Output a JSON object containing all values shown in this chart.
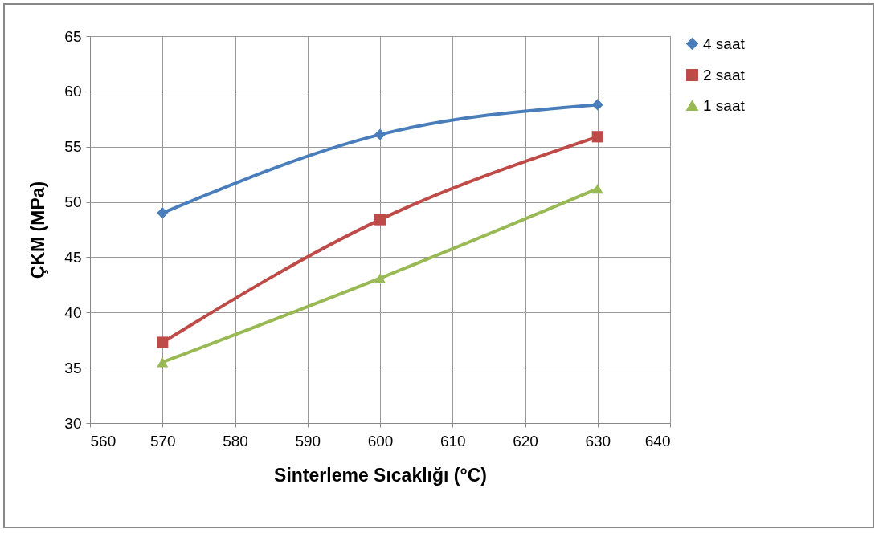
{
  "chart_data": {
    "type": "line",
    "xlabel": "Sinterleme Sıcaklığı (°C)",
    "ylabel": "ÇKM (MPa)",
    "x": [
      570,
      600,
      630
    ],
    "series": [
      {
        "name": "4 saat",
        "color": "#4a7ebb",
        "marker": "diamond",
        "values": [
          49.0,
          56.1,
          58.8
        ]
      },
      {
        "name": "2 saat",
        "color": "#be4b48",
        "marker": "square",
        "values": [
          37.3,
          48.4,
          55.9
        ]
      },
      {
        "name": "1 saat",
        "color": "#98b954",
        "marker": "triangle",
        "values": [
          35.5,
          43.1,
          51.2
        ]
      }
    ],
    "xlim": [
      560,
      640
    ],
    "xticks": [
      560,
      570,
      580,
      590,
      600,
      610,
      620,
      630,
      640
    ],
    "ylim": [
      30,
      65
    ],
    "yticks": [
      30,
      35,
      40,
      45,
      50,
      55,
      60,
      65
    ],
    "grid": true,
    "legend": "right",
    "line_style": "solid"
  }
}
